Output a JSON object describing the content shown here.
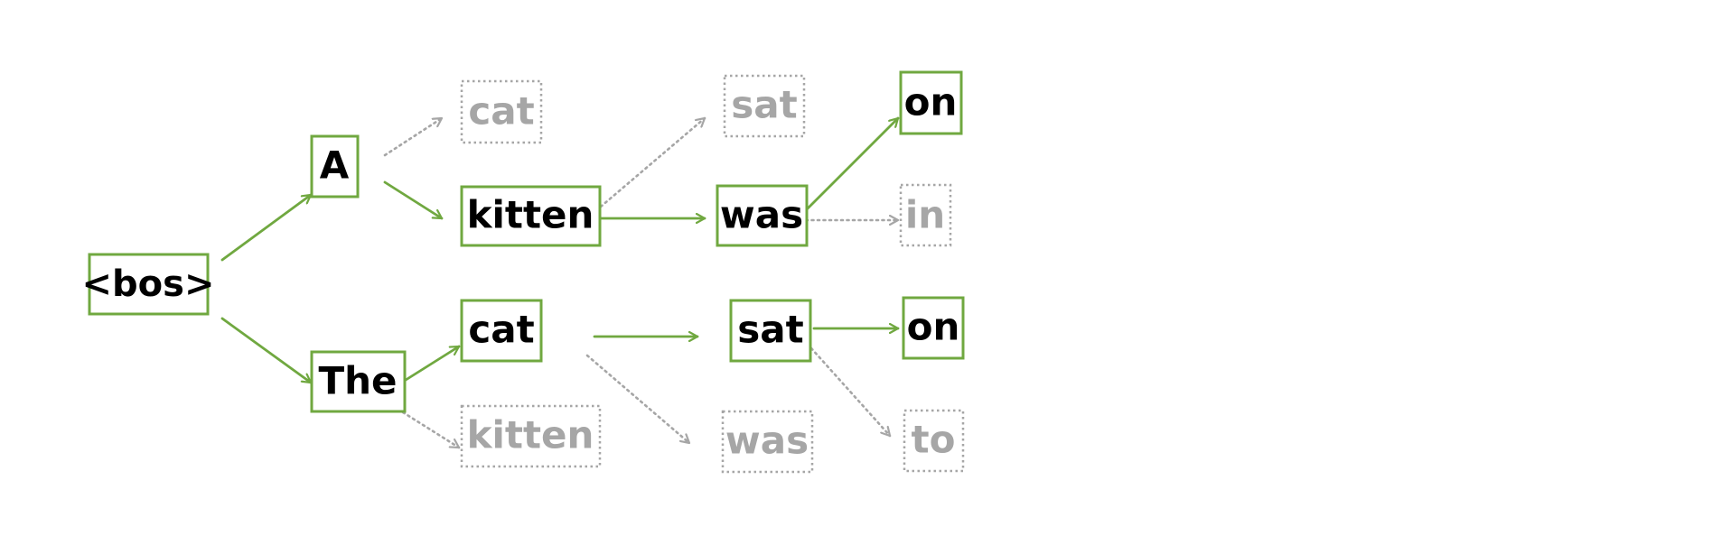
{
  "colors": {
    "selected": "#70a840",
    "pruned": "#a6a6a6",
    "selected_text": "#000000",
    "pruned_text": "#a6a6a6"
  },
  "nodes": {
    "bos": {
      "label": "<bos>",
      "status": "selected"
    },
    "a": {
      "label": "A",
      "status": "selected"
    },
    "the": {
      "label": "The",
      "status": "selected"
    },
    "a_cat": {
      "label": "cat",
      "status": "pruned"
    },
    "a_kitten": {
      "label": "kitten",
      "status": "selected"
    },
    "the_cat": {
      "label": "cat",
      "status": "selected"
    },
    "the_kitten": {
      "label": "kitten",
      "status": "pruned"
    },
    "kitten_sat": {
      "label": "sat",
      "status": "pruned"
    },
    "kitten_was": {
      "label": "was",
      "status": "selected"
    },
    "cat_sat": {
      "label": "sat",
      "status": "selected"
    },
    "cat_was": {
      "label": "was",
      "status": "pruned"
    },
    "was_on": {
      "label": "on",
      "status": "selected"
    },
    "was_in": {
      "label": "in",
      "status": "pruned"
    },
    "sat_on": {
      "label": "on",
      "status": "selected"
    },
    "sat_to": {
      "label": "to",
      "status": "pruned"
    }
  },
  "edges": [
    {
      "from": "bos",
      "to": "a",
      "status": "selected"
    },
    {
      "from": "bos",
      "to": "the",
      "status": "selected"
    },
    {
      "from": "a",
      "to": "a_cat",
      "status": "pruned"
    },
    {
      "from": "a",
      "to": "a_kitten",
      "status": "selected"
    },
    {
      "from": "the",
      "to": "the_cat",
      "status": "selected"
    },
    {
      "from": "the",
      "to": "the_kitten",
      "status": "pruned"
    },
    {
      "from": "a_kitten",
      "to": "kitten_sat",
      "status": "pruned"
    },
    {
      "from": "a_kitten",
      "to": "kitten_was",
      "status": "selected"
    },
    {
      "from": "the_cat",
      "to": "cat_sat",
      "status": "selected"
    },
    {
      "from": "the_cat",
      "to": "cat_was",
      "status": "pruned"
    },
    {
      "from": "kitten_was",
      "to": "was_on",
      "status": "selected"
    },
    {
      "from": "kitten_was",
      "to": "was_in",
      "status": "pruned"
    },
    {
      "from": "cat_sat",
      "to": "sat_on",
      "status": "selected"
    },
    {
      "from": "cat_sat",
      "to": "sat_to",
      "status": "pruned"
    }
  ]
}
